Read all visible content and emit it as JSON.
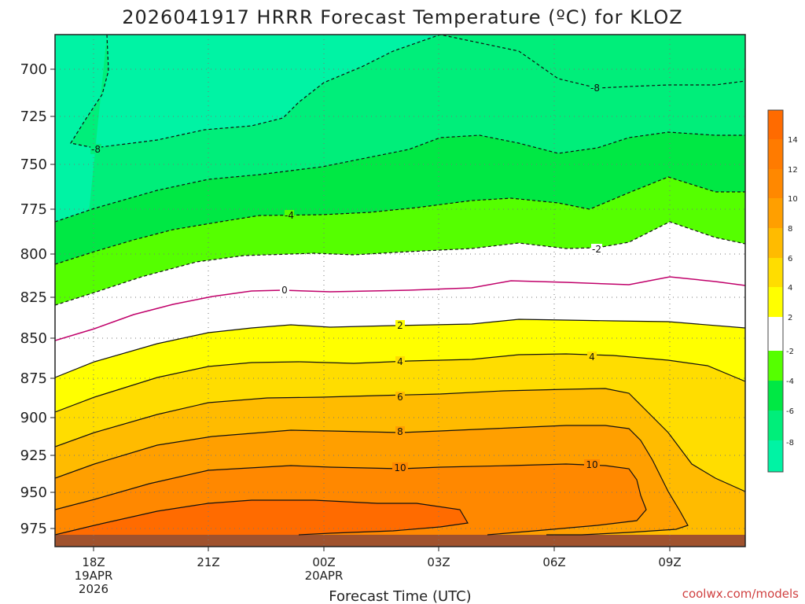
{
  "chart_data": {
    "type": "contour",
    "title": "2026041917 HRRR Forecast Temperature (ºC) for KLOZ",
    "xlabel": "Forecast Time (UTC)",
    "ylabel": "",
    "y_ticks": [
      "700",
      "725",
      "750",
      "775",
      "800",
      "825",
      "850",
      "875",
      "900",
      "925",
      "950",
      "975"
    ],
    "x_ticks": [
      {
        "lines": [
          "18Z",
          "19APR",
          "2026"
        ]
      },
      {
        "lines": [
          "21Z"
        ]
      },
      {
        "lines": [
          "00Z",
          "20APR"
        ]
      },
      {
        "lines": [
          "03Z"
        ]
      },
      {
        "lines": [
          "06Z"
        ]
      },
      {
        "lines": [
          "09Z"
        ]
      }
    ],
    "contour_labels": [
      "-8",
      "-8",
      "-4",
      "-2",
      "0",
      "2",
      "4",
      "4",
      "6",
      "8",
      "10",
      "10"
    ],
    "colorbar_ticks": [
      "14",
      "12",
      "10",
      "8",
      "6",
      "4",
      "2",
      "-2",
      "-4",
      "-6",
      "-8"
    ],
    "credit": "coolwx.com/models"
  }
}
